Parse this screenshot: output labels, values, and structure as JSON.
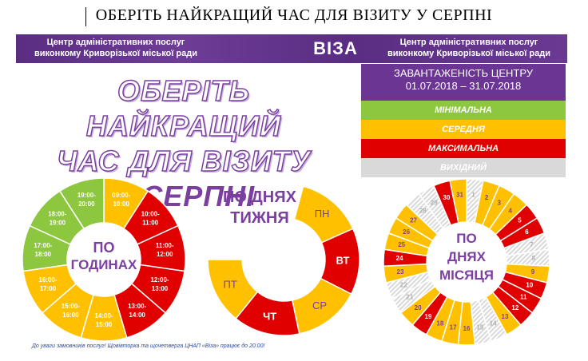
{
  "doc_title": "ОБЕРІТЬ НАЙКРАЩИЙ ЧАС ДЛЯ ВІЗИТУ У СЕРПНІ",
  "banner": {
    "left_line1": "Центр адміністративних послуг",
    "left_line2": "виконкому Криворізької міської ради",
    "logo": "ВІЗА",
    "right_line1": "Центр адміністративних послуг",
    "right_line2": "виконкому Криворізької міської ради"
  },
  "big_title": {
    "line1": "ОБЕРІТЬ НАЙКРАЩИЙ",
    "line2": "ЧАС ДЛЯ ВІЗИТУ",
    "line3": "У СЕРПНІ"
  },
  "legend": {
    "header_line1": "ЗАВАНТАЖЕНІСТЬ ЦЕНТРУ",
    "header_line2": "01.07.2018 – 31.07.2018",
    "items": [
      {
        "label": "МІНІМАЛЬНА",
        "color": "#8dc63f"
      },
      {
        "label": "СЕРЕДНЯ",
        "color": "#ffc000"
      },
      {
        "label": "МАКСИМАЛЬНА",
        "color": "#e00000"
      },
      {
        "label": "ВИХІДНИЙ",
        "color": "#d9d9d9"
      }
    ]
  },
  "hours_chart": {
    "center_line1": "ПО",
    "center_line2": "ГОДИНАХ",
    "segments": [
      {
        "label": "09:00-10:00",
        "load": "medium"
      },
      {
        "label": "10:00-11:00",
        "load": "max"
      },
      {
        "label": "11:00-12:00",
        "load": "max"
      },
      {
        "label": "12:00-13:00",
        "load": "max"
      },
      {
        "label": "13:00-14:00",
        "load": "max"
      },
      {
        "label": "14:00-15:00",
        "load": "medium"
      },
      {
        "label": "15:00-16:00",
        "load": "medium"
      },
      {
        "label": "16:00-17:00",
        "load": "medium"
      },
      {
        "label": "17:00-18:00",
        "load": "min"
      },
      {
        "label": "18:00-19:00",
        "load": "min"
      },
      {
        "label": "19:00-20:00",
        "load": "min"
      }
    ]
  },
  "week_chart": {
    "title_line1": "ПО ДНЯХ",
    "title_line2": "ТИЖНЯ",
    "segments": [
      {
        "label": "ПН",
        "load": "medium"
      },
      {
        "label": "ВТ",
        "load": "max"
      },
      {
        "label": "СР",
        "load": "medium"
      },
      {
        "label": "ЧТ",
        "load": "max"
      },
      {
        "label": "ПТ",
        "load": "medium"
      }
    ]
  },
  "month_chart": {
    "center_line1": "ПО",
    "center_line2": "ДНЯХ",
    "center_line3": "МІСЯЦЯ",
    "days": [
      {
        "label": "1",
        "load": "off"
      },
      {
        "label": "2",
        "load": "medium"
      },
      {
        "label": "3",
        "load": "medium"
      },
      {
        "label": "4",
        "load": "medium"
      },
      {
        "label": "5",
        "load": "max"
      },
      {
        "label": "6",
        "load": "max"
      },
      {
        "label": "7",
        "load": "off"
      },
      {
        "label": "8",
        "load": "off"
      },
      {
        "label": "9",
        "load": "medium"
      },
      {
        "label": "10",
        "load": "max"
      },
      {
        "label": "11",
        "load": "max"
      },
      {
        "label": "12",
        "load": "max"
      },
      {
        "label": "13",
        "load": "medium"
      },
      {
        "label": "14",
        "load": "off"
      },
      {
        "label": "15",
        "load": "off"
      },
      {
        "label": "16",
        "load": "medium"
      },
      {
        "label": "17",
        "load": "medium"
      },
      {
        "label": "18",
        "load": "medium"
      },
      {
        "label": "19",
        "load": "max"
      },
      {
        "label": "20",
        "load": "medium"
      },
      {
        "label": "21",
        "load": "off"
      },
      {
        "label": "22",
        "load": "off"
      },
      {
        "label": "23",
        "load": "medium"
      },
      {
        "label": "24",
        "load": "max"
      },
      {
        "label": "25",
        "load": "medium"
      },
      {
        "label": "26",
        "load": "medium"
      },
      {
        "label": "27",
        "load": "medium"
      },
      {
        "label": "28",
        "load": "off"
      },
      {
        "label": "29",
        "load": "off"
      },
      {
        "label": "30",
        "load": "max"
      },
      {
        "label": "31",
        "load": "medium"
      }
    ]
  },
  "colors": {
    "min": "#8dc63f",
    "medium": "#ffc000",
    "max": "#e00000",
    "off": "#d9d9d9",
    "purple": "#7b3fa0"
  },
  "footnote": "До уваги замовників послуг! Щовівторка та щочетверга ЦНАП «Віза» працює до 20.00!"
}
